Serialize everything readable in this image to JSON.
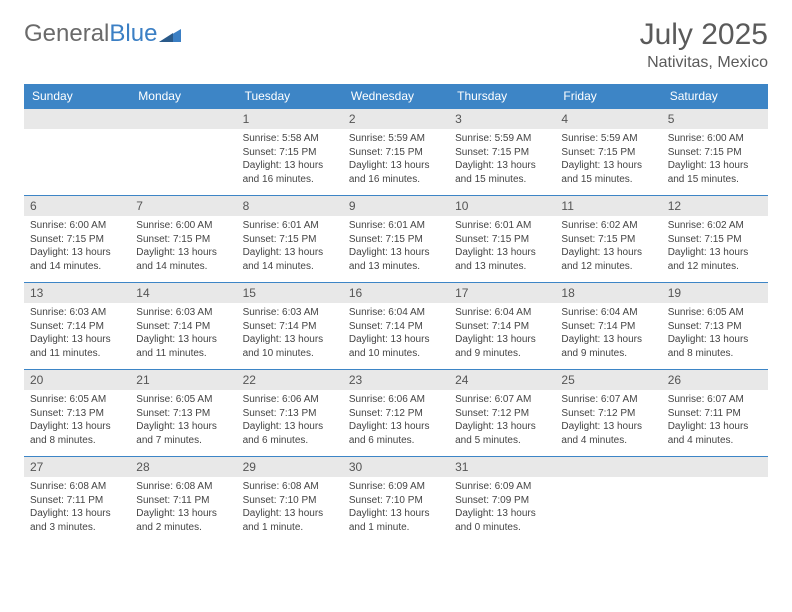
{
  "brand": {
    "part1": "General",
    "part2": "Blue"
  },
  "title": "July 2025",
  "location": "Nativitas, Mexico",
  "headers": [
    "Sunday",
    "Monday",
    "Tuesday",
    "Wednesday",
    "Thursday",
    "Friday",
    "Saturday"
  ],
  "colors": {
    "header_bg": "#3d85c6",
    "header_text": "#ffffff",
    "daynum_bg": "#e8e8e8",
    "border": "#3d85c6",
    "logo_gray": "#6a6a6a",
    "logo_blue": "#3b7fc4"
  },
  "weeks": [
    [
      null,
      null,
      {
        "n": "1",
        "sr": "5:58 AM",
        "ss": "7:15 PM",
        "dl": "13 hours and 16 minutes."
      },
      {
        "n": "2",
        "sr": "5:59 AM",
        "ss": "7:15 PM",
        "dl": "13 hours and 16 minutes."
      },
      {
        "n": "3",
        "sr": "5:59 AM",
        "ss": "7:15 PM",
        "dl": "13 hours and 15 minutes."
      },
      {
        "n": "4",
        "sr": "5:59 AM",
        "ss": "7:15 PM",
        "dl": "13 hours and 15 minutes."
      },
      {
        "n": "5",
        "sr": "6:00 AM",
        "ss": "7:15 PM",
        "dl": "13 hours and 15 minutes."
      }
    ],
    [
      {
        "n": "6",
        "sr": "6:00 AM",
        "ss": "7:15 PM",
        "dl": "13 hours and 14 minutes."
      },
      {
        "n": "7",
        "sr": "6:00 AM",
        "ss": "7:15 PM",
        "dl": "13 hours and 14 minutes."
      },
      {
        "n": "8",
        "sr": "6:01 AM",
        "ss": "7:15 PM",
        "dl": "13 hours and 14 minutes."
      },
      {
        "n": "9",
        "sr": "6:01 AM",
        "ss": "7:15 PM",
        "dl": "13 hours and 13 minutes."
      },
      {
        "n": "10",
        "sr": "6:01 AM",
        "ss": "7:15 PM",
        "dl": "13 hours and 13 minutes."
      },
      {
        "n": "11",
        "sr": "6:02 AM",
        "ss": "7:15 PM",
        "dl": "13 hours and 12 minutes."
      },
      {
        "n": "12",
        "sr": "6:02 AM",
        "ss": "7:15 PM",
        "dl": "13 hours and 12 minutes."
      }
    ],
    [
      {
        "n": "13",
        "sr": "6:03 AM",
        "ss": "7:14 PM",
        "dl": "13 hours and 11 minutes."
      },
      {
        "n": "14",
        "sr": "6:03 AM",
        "ss": "7:14 PM",
        "dl": "13 hours and 11 minutes."
      },
      {
        "n": "15",
        "sr": "6:03 AM",
        "ss": "7:14 PM",
        "dl": "13 hours and 10 minutes."
      },
      {
        "n": "16",
        "sr": "6:04 AM",
        "ss": "7:14 PM",
        "dl": "13 hours and 10 minutes."
      },
      {
        "n": "17",
        "sr": "6:04 AM",
        "ss": "7:14 PM",
        "dl": "13 hours and 9 minutes."
      },
      {
        "n": "18",
        "sr": "6:04 AM",
        "ss": "7:14 PM",
        "dl": "13 hours and 9 minutes."
      },
      {
        "n": "19",
        "sr": "6:05 AM",
        "ss": "7:13 PM",
        "dl": "13 hours and 8 minutes."
      }
    ],
    [
      {
        "n": "20",
        "sr": "6:05 AM",
        "ss": "7:13 PM",
        "dl": "13 hours and 8 minutes."
      },
      {
        "n": "21",
        "sr": "6:05 AM",
        "ss": "7:13 PM",
        "dl": "13 hours and 7 minutes."
      },
      {
        "n": "22",
        "sr": "6:06 AM",
        "ss": "7:13 PM",
        "dl": "13 hours and 6 minutes."
      },
      {
        "n": "23",
        "sr": "6:06 AM",
        "ss": "7:12 PM",
        "dl": "13 hours and 6 minutes."
      },
      {
        "n": "24",
        "sr": "6:07 AM",
        "ss": "7:12 PM",
        "dl": "13 hours and 5 minutes."
      },
      {
        "n": "25",
        "sr": "6:07 AM",
        "ss": "7:12 PM",
        "dl": "13 hours and 4 minutes."
      },
      {
        "n": "26",
        "sr": "6:07 AM",
        "ss": "7:11 PM",
        "dl": "13 hours and 4 minutes."
      }
    ],
    [
      {
        "n": "27",
        "sr": "6:08 AM",
        "ss": "7:11 PM",
        "dl": "13 hours and 3 minutes."
      },
      {
        "n": "28",
        "sr": "6:08 AM",
        "ss": "7:11 PM",
        "dl": "13 hours and 2 minutes."
      },
      {
        "n": "29",
        "sr": "6:08 AM",
        "ss": "7:10 PM",
        "dl": "13 hours and 1 minute."
      },
      {
        "n": "30",
        "sr": "6:09 AM",
        "ss": "7:10 PM",
        "dl": "13 hours and 1 minute."
      },
      {
        "n": "31",
        "sr": "6:09 AM",
        "ss": "7:09 PM",
        "dl": "13 hours and 0 minutes."
      },
      null,
      null
    ]
  ],
  "labels": {
    "sunrise": "Sunrise:",
    "sunset": "Sunset:",
    "daylight": "Daylight:"
  }
}
